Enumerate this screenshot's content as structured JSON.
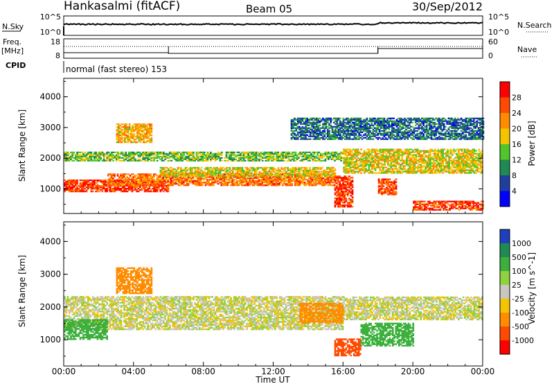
{
  "header": {
    "station": "Hankasalmi (fitACF)",
    "beam": "Beam 05",
    "date": "30/Sep/2012"
  },
  "noise_panel": {
    "left_label": "N.Sky",
    "right_label": "N.Search",
    "left_ticks": [
      "10^5",
      "10^0"
    ],
    "right_ticks": [
      "10^5",
      "10^0"
    ]
  },
  "freq_panel": {
    "left_label_line1": "Freq.",
    "left_label_line2": "[MHz]",
    "left_ticks": [
      "18",
      "8"
    ],
    "right_label": "Nave",
    "right_ticks": [
      "60",
      "0"
    ]
  },
  "cpid": {
    "label": "CPID",
    "text": "normal (fast stereo) 153"
  },
  "x_axis": {
    "label": "Time UT",
    "ticks": [
      "00:00",
      "04:00",
      "08:00",
      "12:00",
      "16:00",
      "20:00",
      "00:00"
    ]
  },
  "power_panel": {
    "ylabel": "Slant Range [km]",
    "yticks": [
      "1000",
      "2000",
      "3000",
      "4000"
    ],
    "colorbar_label": "Power [dB]",
    "colorbar_ticks": [
      "28",
      "24",
      "20",
      "16",
      "12",
      "8",
      "4"
    ],
    "colors": [
      "#ff0000",
      "#ff4a00",
      "#ff8c00",
      "#f5c400",
      "#4fc72a",
      "#1f8a52",
      "#1e3fa0",
      "#0000ff"
    ]
  },
  "velocity_panel": {
    "ylabel": "Slant Range [km]",
    "yticks": [
      "1000",
      "2000",
      "3000",
      "4000"
    ],
    "colorbar_label": "Velocity [m s^-1]",
    "colorbar_ticks": [
      "1000",
      "500",
      "100",
      "25",
      "-25",
      "-100",
      "-500",
      "-1000"
    ],
    "colors": [
      "#1e3fbe",
      "#1f8a52",
      "#3cb03c",
      "#8fd13f",
      "#c8c8c0",
      "#f5c400",
      "#ff8c00",
      "#ff4a00",
      "#ff0000"
    ]
  },
  "chart_data": [
    {
      "type": "heatmap",
      "title": "Power [dB]",
      "xlabel": "Time UT",
      "ylabel": "Slant Range [km]",
      "xlim": [
        "00:00",
        "24:00"
      ],
      "ylim": [
        200,
        4600
      ],
      "color_scale": [
        0,
        32
      ],
      "bands": [
        {
          "t0": 0.0,
          "t1": 6.0,
          "r0": 900,
          "r1": 1300,
          "value": 27
        },
        {
          "t0": 2.5,
          "t1": 15.5,
          "r0": 1100,
          "r1": 1500,
          "value": 24
        },
        {
          "t0": 5.5,
          "t1": 15.5,
          "r0": 1400,
          "r1": 1700,
          "value": 18
        },
        {
          "t0": 0.0,
          "t1": 16.0,
          "r0": 1900,
          "r1": 2200,
          "value": 14
        },
        {
          "t0": 3.0,
          "t1": 5.0,
          "r0": 2500,
          "r1": 3100,
          "value": 20
        },
        {
          "t0": 15.5,
          "t1": 16.5,
          "r0": 400,
          "r1": 1400,
          "value": 27
        },
        {
          "t0": 16.0,
          "t1": 24.0,
          "r0": 1500,
          "r1": 2300,
          "value": 18
        },
        {
          "t0": 18.0,
          "t1": 19.0,
          "r0": 800,
          "r1": 1300,
          "value": 26
        },
        {
          "t0": 20.0,
          "t1": 24.0,
          "r0": 300,
          "r1": 600,
          "value": 27
        },
        {
          "t0": 13.0,
          "t1": 24.0,
          "r0": 2600,
          "r1": 3300,
          "value": 8
        }
      ]
    },
    {
      "type": "heatmap",
      "title": "Velocity [m s^-1]",
      "xlabel": "Time UT",
      "ylabel": "Slant Range [km]",
      "xlim": [
        "00:00",
        "24:00"
      ],
      "ylim": [
        200,
        4600
      ],
      "color_scale": [
        -1000,
        1000
      ],
      "bands": [
        {
          "t0": 0.0,
          "t1": 16.0,
          "r0": 1300,
          "r1": 2300,
          "value": 0
        },
        {
          "t0": 16.0,
          "t1": 24.0,
          "r0": 1600,
          "r1": 2300,
          "value": 0
        },
        {
          "t0": 0.0,
          "t1": 2.5,
          "r0": 1000,
          "r1": 1600,
          "value": 200
        },
        {
          "t0": 3.0,
          "t1": 5.0,
          "r0": 2400,
          "r1": 3200,
          "value": -400
        },
        {
          "t0": 15.5,
          "t1": 17.0,
          "r0": 500,
          "r1": 1000,
          "value": -600
        },
        {
          "t0": 17.0,
          "t1": 20.0,
          "r0": 800,
          "r1": 1500,
          "value": 300
        },
        {
          "t0": 13.5,
          "t1": 16.0,
          "r0": 1500,
          "r1": 2100,
          "value": -300
        }
      ]
    }
  ]
}
